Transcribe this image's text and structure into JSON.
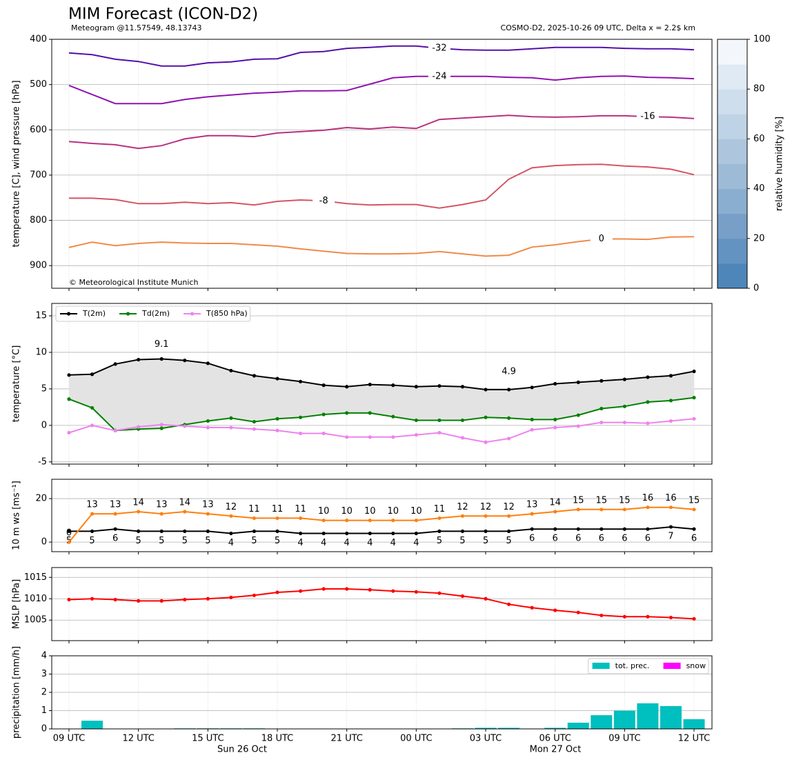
{
  "chart_data": [
    {
      "type": "contour",
      "title": "MIM Forecast (ICON-D2)",
      "subtitle": "Meteogram @11.57549, 48.13743",
      "run_info": "COSMO-D2, 2025-10-26 09 UTC, Delta x = 2.2$ km",
      "credit": "© Meteorological Institute Munich",
      "ylabel": "temperature [C], wind pressure [hPa]",
      "ylim": [
        950,
        400
      ],
      "yticks": [
        400,
        500,
        600,
        700,
        800,
        900
      ],
      "grid": true,
      "series": [
        {
          "name": "-32",
          "color": "#5410a8",
          "values": [
            430,
            434,
            444,
            449,
            459,
            459,
            452,
            450,
            444,
            443,
            429,
            427,
            420,
            418,
            415,
            415,
            420,
            423,
            424,
            424,
            421,
            418,
            418,
            418,
            420,
            421,
            421,
            423
          ]
        },
        {
          "name": "-24",
          "color": "#9012b0",
          "values": [
            502,
            522,
            542,
            542,
            542,
            533,
            527,
            523,
            519,
            517,
            514,
            514,
            513,
            499,
            485,
            482,
            482,
            482,
            482,
            484,
            485,
            490,
            485,
            482,
            481,
            484,
            485,
            487
          ]
        },
        {
          "name": "-16",
          "color": "#b8307f",
          "values": [
            626,
            630,
            633,
            641,
            635,
            620,
            613,
            613,
            615,
            607,
            604,
            601,
            595,
            598,
            594,
            597,
            577,
            574,
            571,
            568,
            571,
            572,
            571,
            569,
            569,
            571,
            572,
            575
          ]
        },
        {
          "name": "-8",
          "color": "#d45466",
          "values": [
            751,
            751,
            754,
            763,
            763,
            760,
            763,
            761,
            766,
            758,
            755,
            757,
            763,
            766,
            765,
            765,
            773,
            765,
            755,
            709,
            684,
            679,
            677,
            676,
            680,
            682,
            687,
            699
          ]
        },
        {
          "name": "0",
          "color": "#f08a48",
          "values": [
            860,
            848,
            856,
            851,
            848,
            850,
            851,
            851,
            854,
            857,
            863,
            868,
            873,
            874,
            874,
            873,
            869,
            874,
            879,
            877,
            859,
            854,
            847,
            841,
            841,
            842,
            837,
            836
          ]
        }
      ],
      "colorbar": {
        "label": "relative humidity [%]",
        "lim": [
          0,
          100
        ],
        "ticks": [
          0,
          20,
          40,
          60,
          80,
          100
        ],
        "colors": [
          "#4f86ba",
          "#6393c1",
          "#779fc8",
          "#8aaecf",
          "#9dbad6",
          "#aec6dd",
          "#bfd3e6",
          "#cfdeed",
          "#e0eaf4",
          "#f3f7fb"
        ]
      }
    },
    {
      "type": "line",
      "ylabel": "temperature [°C]",
      "ylim": [
        -5.3,
        16.7
      ],
      "yticks": [
        -5,
        0,
        5,
        10,
        15
      ],
      "grid": true,
      "legend": "upper left",
      "fill_between_color": "#e3e3e3",
      "extreme_colors": {
        "max": "red",
        "min": "blue"
      },
      "series": [
        {
          "name": "T(2m)",
          "color": "#000000",
          "values": [
            6.9,
            7.0,
            8.4,
            9.0,
            9.1,
            8.9,
            8.5,
            7.5,
            6.8,
            6.4,
            6.0,
            5.5,
            5.3,
            5.6,
            5.5,
            5.3,
            5.4,
            5.3,
            4.9,
            4.9,
            5.2,
            5.7,
            5.9,
            6.1,
            6.3,
            6.6,
            6.8,
            7.4
          ]
        },
        {
          "name": "Td(2m)",
          "color": "#008000",
          "values": [
            3.6,
            2.4,
            -0.7,
            -0.5,
            -0.4,
            0.1,
            0.6,
            1.0,
            0.5,
            0.9,
            1.1,
            1.5,
            1.7,
            1.7,
            1.2,
            0.7,
            0.7,
            0.7,
            1.1,
            1.0,
            0.8,
            0.8,
            1.4,
            2.3,
            2.6,
            3.2,
            3.4,
            3.8
          ]
        },
        {
          "name": "T(850 hPa)",
          "color": "#ee82ee",
          "values": [
            -1.0,
            0.0,
            -0.7,
            -0.2,
            0.1,
            -0.1,
            -0.3,
            -0.3,
            -0.5,
            -0.7,
            -1.1,
            -1.1,
            -1.6,
            -1.6,
            -1.6,
            -1.3,
            -1.0,
            -1.7,
            -2.3,
            -1.8,
            -0.6,
            -0.3,
            -0.1,
            0.4,
            0.4,
            0.3,
            0.6,
            0.9
          ]
        }
      ]
    },
    {
      "type": "line",
      "ylabel": "10 m ws [ms⁻¹]",
      "ylim": [
        -4.4,
        28.9
      ],
      "yticks": [
        0,
        20
      ],
      "grid": true,
      "data_labels": true,
      "series": [
        {
          "color": "#000000",
          "label_position": "below",
          "values": [
            5,
            5,
            6,
            5,
            5,
            5,
            5,
            4,
            5,
            5,
            4,
            4,
            4,
            4,
            4,
            4,
            5,
            5,
            5,
            5,
            6,
            6,
            6,
            6,
            6,
            6,
            7,
            6
          ]
        },
        {
          "color": "#ff7f0e",
          "label_position": "above",
          "values": [
            0,
            13,
            13,
            14,
            13,
            14,
            13,
            12,
            11,
            11,
            11,
            10,
            10,
            10,
            10,
            10,
            11,
            12,
            12,
            12,
            13,
            14,
            15,
            15,
            15,
            16,
            16,
            15
          ]
        }
      ]
    },
    {
      "type": "line",
      "ylabel": "MSLP [hPa]",
      "ylim": [
        1000.2,
        1017.3
      ],
      "yticks": [
        1005,
        1010,
        1015
      ],
      "grid": true,
      "series": [
        {
          "color": "#ff0000",
          "values": [
            1009.8,
            1010.0,
            1009.8,
            1009.5,
            1009.5,
            1009.8,
            1010.0,
            1010.3,
            1010.8,
            1011.5,
            1011.8,
            1012.3,
            1012.3,
            1012.1,
            1011.8,
            1011.6,
            1011.3,
            1010.6,
            1010.0,
            1008.7,
            1007.9,
            1007.3,
            1006.8,
            1006.1,
            1005.8,
            1005.8,
            1005.6,
            1005.3
          ]
        }
      ]
    },
    {
      "type": "bar",
      "ylabel": "precipitation [mm/h]",
      "ylim": [
        0,
        4
      ],
      "yticks": [
        0,
        1,
        2,
        3,
        4
      ],
      "grid": true,
      "legend": "upper right",
      "categories": [
        "09 UTC",
        null,
        null,
        "12 UTC",
        null,
        null,
        "15 UTC",
        null,
        null,
        "18 UTC",
        null,
        null,
        "21 UTC",
        null,
        null,
        "00 UTC",
        null,
        null,
        "03 UTC",
        null,
        null,
        "06 UTC",
        null,
        null,
        "09 UTC",
        null,
        null,
        "12 UTC"
      ],
      "date_labels": [
        "Sun 26 Oct",
        "Mon 27 Oct"
      ],
      "series": [
        {
          "name": "tot. prec.",
          "color": "#00bfbf",
          "values": [
            0,
            0.45,
            0,
            0,
            0,
            0.03,
            0.03,
            0.03,
            0.03,
            0,
            0,
            0,
            0,
            0,
            0,
            0,
            0,
            0.03,
            0.06,
            0.06,
            0.02,
            0.06,
            0.34,
            0.75,
            1.0,
            1.4,
            1.25,
            0.53
          ]
        },
        {
          "name": "snow",
          "color": "#ff00ff",
          "values": [
            0,
            0,
            0,
            0,
            0,
            0,
            0,
            0,
            0,
            0,
            0,
            0,
            0,
            0,
            0,
            0,
            0,
            0,
            0,
            0,
            0,
            0,
            0,
            0,
            0,
            0,
            0,
            0
          ]
        }
      ]
    }
  ]
}
